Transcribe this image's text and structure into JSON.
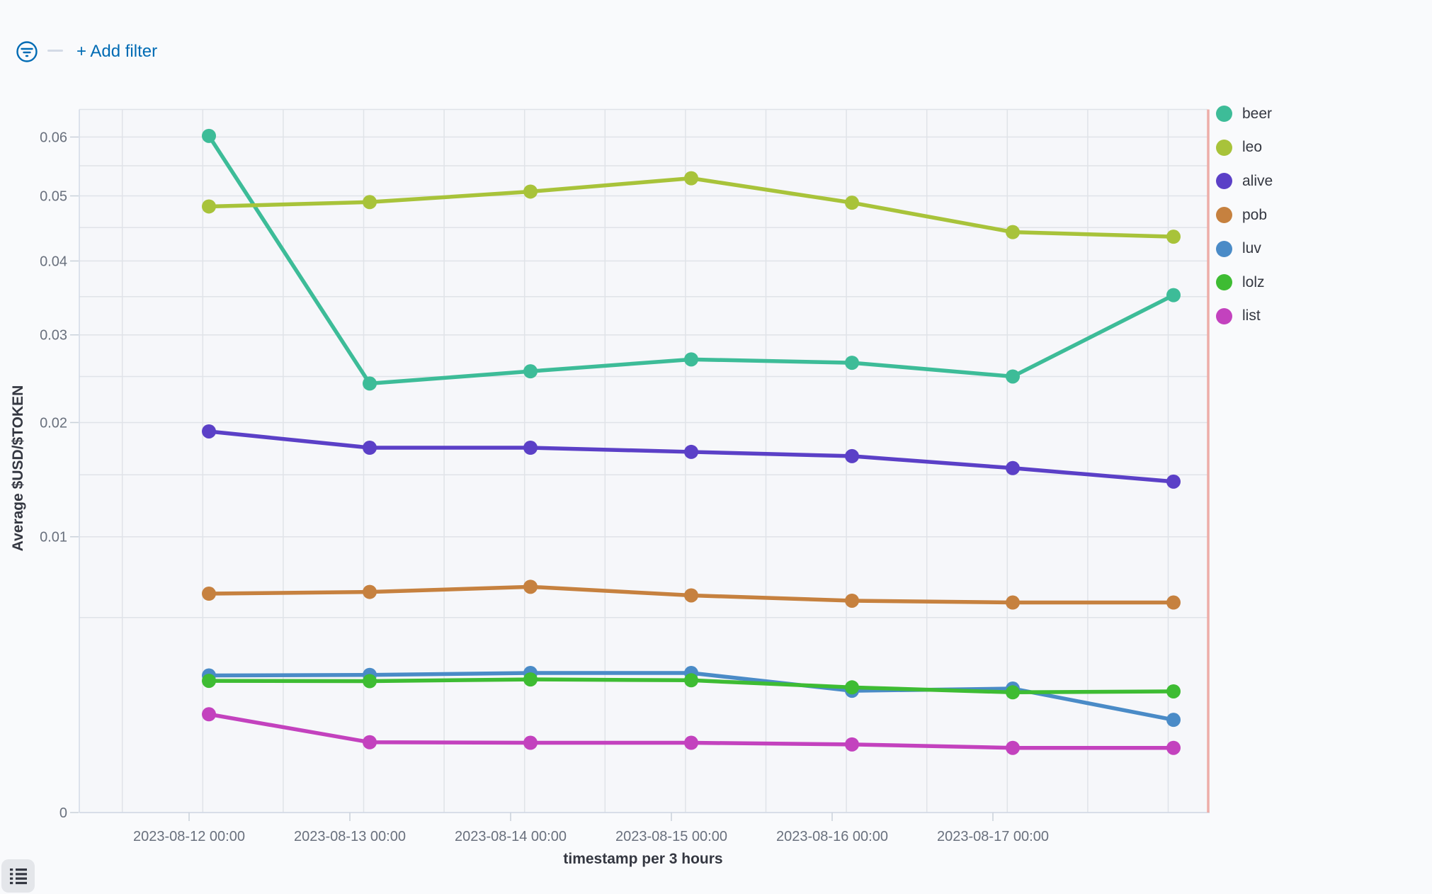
{
  "toolbar": {
    "add_filter_label": "+ Add filter",
    "accent_color": "#006BB4"
  },
  "axes": {
    "y_title": "Average $USD/$TOKEN",
    "x_title": "timestamp per 3 hours",
    "y_tick_labels": [
      {
        "value": 0.06,
        "label": "0.06"
      },
      {
        "value": 0.05,
        "label": "0.05"
      },
      {
        "value": 0.04,
        "label": "0.04"
      },
      {
        "value": 0.03,
        "label": "0.03"
      },
      {
        "value": 0.02,
        "label": "0.02"
      },
      {
        "value": 0.01,
        "label": "0.01"
      },
      {
        "value": 0,
        "label": "0"
      }
    ],
    "x_tick_labels": [
      "2023-08-12 00:00",
      "2023-08-13 00:00",
      "2023-08-14 00:00",
      "2023-08-15 00:00",
      "2023-08-16 00:00",
      "2023-08-17 00:00"
    ]
  },
  "chart_data": {
    "type": "line",
    "x": [
      "2023-08-12 00:00",
      "2023-08-13 00:00",
      "2023-08-14 00:00",
      "2023-08-15 00:00",
      "2023-08-16 00:00",
      "2023-08-17 00:00",
      "2023-08-18 00:00"
    ],
    "series": [
      {
        "name": "beer",
        "color": "#3DBC98",
        "values": [
          0.0602,
          0.0242,
          0.0256,
          0.027,
          0.0266,
          0.025,
          0.0352
        ]
      },
      {
        "name": "leo",
        "color": "#A8C33A",
        "values": [
          0.0483,
          0.049,
          0.0507,
          0.0529,
          0.0489,
          0.0443,
          0.0436
        ]
      },
      {
        "name": "alive",
        "color": "#5B40C7",
        "values": [
          0.0191,
          0.0175,
          0.0175,
          0.0171,
          0.0167,
          0.0156,
          0.0144
        ]
      },
      {
        "name": "pob",
        "color": "#C6813F",
        "values": [
          0.0063,
          0.0064,
          0.0067,
          0.0062,
          0.0059,
          0.0058,
          0.0058
        ]
      },
      {
        "name": "luv",
        "color": "#4A8BC7",
        "values": [
          0.00247,
          0.00249,
          0.00256,
          0.00256,
          0.00195,
          0.00202,
          0.00113
        ]
      },
      {
        "name": "lolz",
        "color": "#3EBC33",
        "values": [
          0.00228,
          0.00227,
          0.00233,
          0.0023,
          0.00206,
          0.0019,
          0.00193
        ]
      },
      {
        "name": "list",
        "color": "#C342BE",
        "values": [
          0.00127,
          0.00065,
          0.00064,
          0.00064,
          0.00061,
          0.00055,
          0.00055
        ]
      }
    ],
    "title": "",
    "xlabel": "timestamp per 3 hours",
    "ylabel": "Average $USD/$TOKEN",
    "y_scale": "sqrt",
    "ylim": [
      0,
      0.065
    ],
    "y_major_grid_step": 0.01,
    "y_minor_grid_step": 0.005,
    "grid": true,
    "legend_position": "right",
    "now_marker_color": "#EDADA8"
  },
  "footer": {
    "legend_toggle_icon": "list-icon"
  }
}
